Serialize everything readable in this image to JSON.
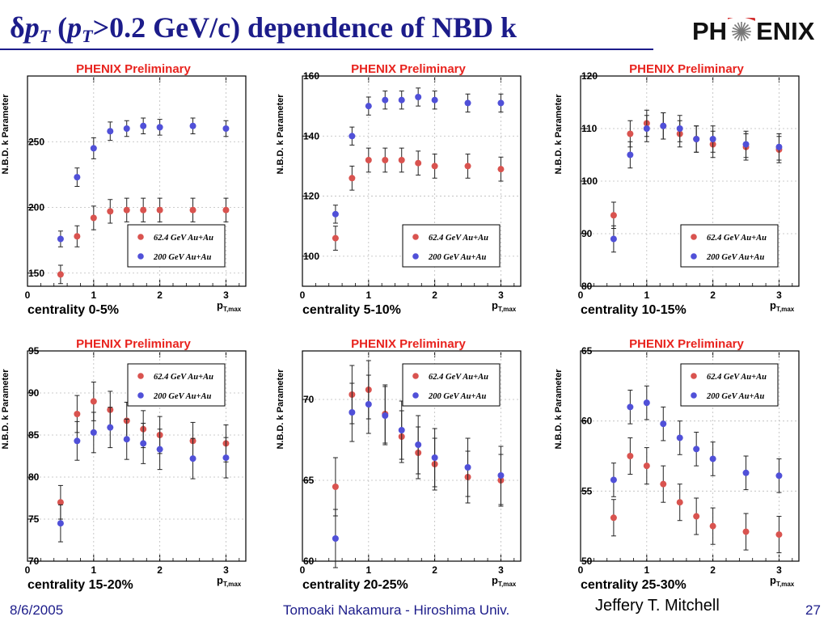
{
  "slide": {
    "title_delta": "δ",
    "title_p1": "p",
    "title_sub1": "T",
    "title_open": " (",
    "title_p2": "p",
    "title_sub2": "T",
    "title_rest": ">0.2 GeV/c) dependence of NBD k",
    "logo_left": "PH",
    "logo_right": "ENIX"
  },
  "footer": {
    "date": "8/6/2005",
    "author": "Tomoaki Nakamura - Hiroshima Univ.",
    "speaker": "Jeffery T. Mitchell",
    "page": "27"
  },
  "colors": {
    "title_blue": "#1c1c8a",
    "preliminary_red": "#e8231e",
    "series_62": "#d9534f",
    "series_200": "#5050d8"
  },
  "chart_data": [
    {
      "type": "scatter",
      "banner": "PHENIX Preliminary",
      "caption": "centrality 0-5%",
      "ylabel": "N.B.D. k Parameter",
      "xlabel": "p",
      "xlabel_sub": "T,max",
      "xlim": [
        0,
        3.3
      ],
      "ylim": [
        140,
        300
      ],
      "xticks": [
        0,
        1,
        2,
        3
      ],
      "yticks": [
        150,
        200,
        250
      ],
      "ytick_labels": [
        "150",
        "200",
        "250"
      ],
      "legend": "bottom-right",
      "series": [
        {
          "name": "62.4 GeV Au+Au",
          "x": [
            0.5,
            0.75,
            1.0,
            1.25,
            1.5,
            1.75,
            2.0,
            2.5,
            3.0
          ],
          "y": [
            149,
            178,
            192,
            197,
            198,
            198,
            198,
            198,
            198
          ],
          "err": [
            7,
            8,
            9,
            9,
            9,
            9,
            9,
            9,
            9
          ]
        },
        {
          "name": "200 GeV Au+Au",
          "x": [
            0.5,
            0.75,
            1.0,
            1.25,
            1.5,
            1.75,
            2.0,
            2.5,
            3.0
          ],
          "y": [
            176,
            223,
            245,
            258,
            260,
            262,
            261,
            262,
            260
          ],
          "err": [
            6,
            7,
            8,
            7,
            6,
            6,
            6,
            6,
            6
          ]
        }
      ]
    },
    {
      "type": "scatter",
      "banner": "PHENIX Preliminary",
      "caption": "centrality 5-10%",
      "ylabel": "N.B.D. k Parameter",
      "xlabel": "p",
      "xlabel_sub": "T,max",
      "xlim": [
        0,
        3.3
      ],
      "ylim": [
        90,
        160
      ],
      "xticks": [
        0,
        1,
        2,
        3
      ],
      "yticks": [
        100,
        120,
        140,
        160
      ],
      "ytick_labels": [
        "100",
        "120",
        "140",
        "160"
      ],
      "legend": "bottom-right",
      "series": [
        {
          "name": "62.4 GeV Au+Au",
          "x": [
            0.5,
            0.75,
            1.0,
            1.25,
            1.5,
            1.75,
            2.0,
            2.5,
            3.0
          ],
          "y": [
            106,
            126,
            132,
            132,
            132,
            131,
            130,
            130,
            129
          ],
          "err": [
            4,
            4,
            4,
            4,
            4,
            4,
            4,
            4,
            4
          ]
        },
        {
          "name": "200 GeV Au+Au",
          "x": [
            0.5,
            0.75,
            1.0,
            1.25,
            1.5,
            1.75,
            2.0,
            2.5,
            3.0
          ],
          "y": [
            114,
            140,
            150,
            152,
            152,
            153,
            152,
            151,
            151
          ],
          "err": [
            3,
            3,
            3,
            3,
            3,
            3,
            3,
            3,
            3
          ]
        }
      ]
    },
    {
      "type": "scatter",
      "banner": "PHENIX Preliminary",
      "caption": "centrality 10-15%",
      "ylabel": "N.B.D. k Parameter",
      "xlabel": "p",
      "xlabel_sub": "T,max",
      "xlim": [
        0,
        3.3
      ],
      "ylim": [
        80,
        120
      ],
      "xticks": [
        0,
        1,
        2,
        3
      ],
      "yticks": [
        80,
        90,
        100,
        110,
        120
      ],
      "ytick_labels": [
        "80",
        "90",
        "100",
        "110",
        "120"
      ],
      "legend": "bottom-right",
      "series": [
        {
          "name": "62.4 GeV Au+Au",
          "x": [
            0.5,
            0.75,
            1.0,
            1.25,
            1.5,
            1.75,
            2.0,
            2.5,
            3.0
          ],
          "y": [
            93.5,
            109,
            111,
            110.5,
            109,
            108,
            107,
            106.5,
            106
          ],
          "err": [
            2.5,
            2.5,
            2.5,
            2.5,
            2.5,
            2.5,
            2.5,
            2.5,
            2.5
          ]
        },
        {
          "name": "200 GeV Au+Au",
          "x": [
            0.5,
            0.75,
            1.0,
            1.25,
            1.5,
            1.75,
            2.0,
            2.5,
            3.0
          ],
          "y": [
            89,
            105,
            110,
            110.5,
            110,
            108,
            108,
            107,
            106.5
          ],
          "err": [
            2.5,
            2.5,
            2.5,
            2.5,
            2.5,
            2.5,
            2.5,
            2.5,
            2.5
          ]
        }
      ]
    },
    {
      "type": "scatter",
      "banner": "PHENIX Preliminary",
      "caption": "centrality 15-20%",
      "ylabel": "N.B.D. k Parameter",
      "xlabel": "p",
      "xlabel_sub": "T,max",
      "xlim": [
        0,
        3.3
      ],
      "ylim": [
        70,
        95
      ],
      "xticks": [
        0,
        1,
        2,
        3
      ],
      "yticks": [
        70,
        75,
        80,
        85,
        90,
        95
      ],
      "ytick_labels": [
        "70",
        "75",
        "80",
        "85",
        "90",
        "95"
      ],
      "legend": "top-right",
      "series": [
        {
          "name": "62.4 GeV Au+Au",
          "x": [
            0.5,
            0.75,
            1.0,
            1.25,
            1.5,
            1.75,
            2.0,
            2.5,
            3.0
          ],
          "y": [
            77,
            87.5,
            89,
            88,
            86.7,
            85.7,
            85,
            84.3,
            84
          ],
          "err": [
            2,
            2.2,
            2.3,
            2.2,
            2.2,
            2.2,
            2.2,
            2.2,
            2.2
          ]
        },
        {
          "name": "200 GeV Au+Au",
          "x": [
            0.5,
            0.75,
            1.0,
            1.25,
            1.5,
            1.75,
            2.0,
            2.5,
            3.0
          ],
          "y": [
            74.5,
            84.3,
            85.3,
            85.9,
            84.5,
            84,
            83.3,
            82.2,
            82.3
          ],
          "err": [
            2.2,
            2.3,
            2.4,
            2.4,
            2.4,
            2.4,
            2.4,
            2.4,
            2.4
          ]
        }
      ]
    },
    {
      "type": "scatter",
      "banner": "PHENIX Preliminary",
      "caption": "centrality 20-25%",
      "ylabel": "N.B.D. k Parameter",
      "xlabel": "p",
      "xlabel_sub": "T,max",
      "xlim": [
        0,
        3.3
      ],
      "ylim": [
        60,
        73
      ],
      "xticks": [
        0,
        1,
        2,
        3
      ],
      "yticks": [
        60,
        65,
        70
      ],
      "ytick_labels": [
        "60",
        "65",
        "70"
      ],
      "legend": "top-right",
      "series": [
        {
          "name": "62.4 GeV Au+Au",
          "x": [
            0.5,
            0.75,
            1.0,
            1.25,
            1.5,
            1.75,
            2.0,
            2.5,
            3.0
          ],
          "y": [
            64.6,
            70.3,
            70.6,
            69.1,
            67.7,
            66.7,
            66,
            65.2,
            65
          ],
          "err": [
            1.8,
            1.8,
            1.8,
            1.8,
            1.6,
            1.6,
            1.6,
            1.6,
            1.6
          ]
        },
        {
          "name": "200 GeV Au+Au",
          "x": [
            0.5,
            0.75,
            1.0,
            1.25,
            1.5,
            1.75,
            2.0,
            2.5,
            3.0
          ],
          "y": [
            61.4,
            69.2,
            69.7,
            69,
            68.1,
            67.2,
            66.4,
            65.8,
            65.3
          ],
          "err": [
            1.8,
            1.8,
            1.8,
            1.8,
            1.8,
            1.8,
            1.8,
            1.8,
            1.8
          ]
        }
      ]
    },
    {
      "type": "scatter",
      "banner": "PHENIX Preliminary",
      "caption": "centrality 25-30%",
      "ylabel": "N.B.D. k Parameter",
      "xlabel": "p",
      "xlabel_sub": "T,max",
      "xlim": [
        0,
        3.3
      ],
      "ylim": [
        50,
        65
      ],
      "xticks": [
        0,
        1,
        2,
        3
      ],
      "yticks": [
        50,
        55,
        60,
        65
      ],
      "ytick_labels": [
        "50",
        "55",
        "60",
        "65"
      ],
      "legend": "top-right",
      "series": [
        {
          "name": "62.4 GeV Au+Au",
          "x": [
            0.5,
            0.75,
            1.0,
            1.25,
            1.5,
            1.75,
            2.0,
            2.5,
            3.0
          ],
          "y": [
            53.1,
            57.5,
            56.8,
            55.5,
            54.2,
            53.2,
            52.5,
            52.1,
            51.9
          ],
          "err": [
            1.3,
            1.3,
            1.3,
            1.3,
            1.3,
            1.3,
            1.3,
            1.3,
            1.3
          ]
        },
        {
          "name": "200 GeV Au+Au",
          "x": [
            0.5,
            0.75,
            1.0,
            1.25,
            1.5,
            1.75,
            2.0,
            2.5,
            3.0
          ],
          "y": [
            55.8,
            61,
            61.3,
            59.8,
            58.8,
            58,
            57.3,
            56.3,
            56.1
          ],
          "err": [
            1.2,
            1.2,
            1.2,
            1.2,
            1.2,
            1.2,
            1.2,
            1.2,
            1.2
          ]
        }
      ]
    }
  ]
}
